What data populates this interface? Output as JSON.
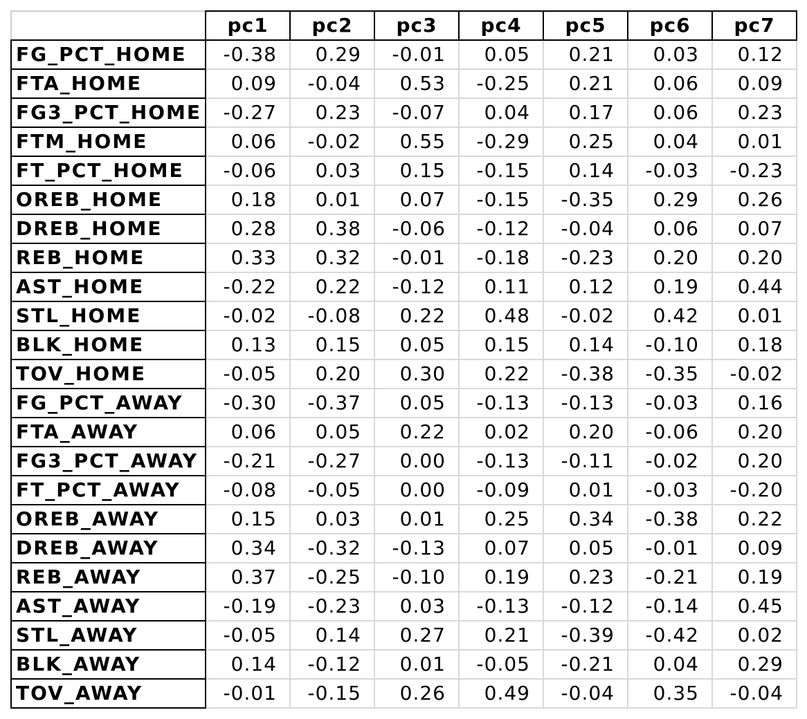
{
  "columns": [
    "pc1",
    "pc2",
    "pc3",
    "pc4",
    "pc5",
    "pc6",
    "pc7"
  ],
  "rows": [
    {
      "label": "FG_PCT_HOME",
      "values": [
        "-0.38",
        "0.29",
        "-0.01",
        "0.05",
        "0.21",
        "0.03",
        "0.12"
      ]
    },
    {
      "label": "FTA_HOME",
      "values": [
        "0.09",
        "-0.04",
        "0.53",
        "-0.25",
        "0.21",
        "0.06",
        "0.09"
      ]
    },
    {
      "label": "FG3_PCT_HOME",
      "values": [
        "-0.27",
        "0.23",
        "-0.07",
        "0.04",
        "0.17",
        "0.06",
        "0.23"
      ]
    },
    {
      "label": "FTM_HOME",
      "values": [
        "0.06",
        "-0.02",
        "0.55",
        "-0.29",
        "0.25",
        "0.04",
        "0.01"
      ]
    },
    {
      "label": "FT_PCT_HOME",
      "values": [
        "-0.06",
        "0.03",
        "0.15",
        "-0.15",
        "0.14",
        "-0.03",
        "-0.23"
      ]
    },
    {
      "label": "OREB_HOME",
      "values": [
        "0.18",
        "0.01",
        "0.07",
        "-0.15",
        "-0.35",
        "0.29",
        "0.26"
      ]
    },
    {
      "label": "DREB_HOME",
      "values": [
        "0.28",
        "0.38",
        "-0.06",
        "-0.12",
        "-0.04",
        "0.06",
        "0.07"
      ]
    },
    {
      "label": "REB_HOME",
      "values": [
        "0.33",
        "0.32",
        "-0.01",
        "-0.18",
        "-0.23",
        "0.20",
        "0.20"
      ]
    },
    {
      "label": "AST_HOME",
      "values": [
        "-0.22",
        "0.22",
        "-0.12",
        "0.11",
        "0.12",
        "0.19",
        "0.44"
      ]
    },
    {
      "label": "STL_HOME",
      "values": [
        "-0.02",
        "-0.08",
        "0.22",
        "0.48",
        "-0.02",
        "0.42",
        "0.01"
      ]
    },
    {
      "label": "BLK_HOME",
      "values": [
        "0.13",
        "0.15",
        "0.05",
        "0.15",
        "0.14",
        "-0.10",
        "0.18"
      ]
    },
    {
      "label": "TOV_HOME",
      "values": [
        "-0.05",
        "0.20",
        "0.30",
        "0.22",
        "-0.38",
        "-0.35",
        "-0.02"
      ]
    },
    {
      "label": "FG_PCT_AWAY",
      "values": [
        "-0.30",
        "-0.37",
        "0.05",
        "-0.13",
        "-0.13",
        "-0.03",
        "0.16"
      ]
    },
    {
      "label": "FTA_AWAY",
      "values": [
        "0.06",
        "0.05",
        "0.22",
        "0.02",
        "0.20",
        "-0.06",
        "0.20"
      ]
    },
    {
      "label": "FG3_PCT_AWAY",
      "values": [
        "-0.21",
        "-0.27",
        "0.00",
        "-0.13",
        "-0.11",
        "-0.02",
        "0.20"
      ]
    },
    {
      "label": "FT_PCT_AWAY",
      "values": [
        "-0.08",
        "-0.05",
        "0.00",
        "-0.09",
        "0.01",
        "-0.03",
        "-0.20"
      ]
    },
    {
      "label": "OREB_AWAY",
      "values": [
        "0.15",
        "0.03",
        "0.01",
        "0.25",
        "0.34",
        "-0.38",
        "0.22"
      ]
    },
    {
      "label": "DREB_AWAY",
      "values": [
        "0.34",
        "-0.32",
        "-0.13",
        "0.07",
        "0.05",
        "-0.01",
        "0.09"
      ]
    },
    {
      "label": "REB_AWAY",
      "values": [
        "0.37",
        "-0.25",
        "-0.10",
        "0.19",
        "0.23",
        "-0.21",
        "0.19"
      ]
    },
    {
      "label": "AST_AWAY",
      "values": [
        "-0.19",
        "-0.23",
        "0.03",
        "-0.13",
        "-0.12",
        "-0.14",
        "0.45"
      ]
    },
    {
      "label": "STL_AWAY",
      "values": [
        "-0.05",
        "0.14",
        "0.27",
        "0.21",
        "-0.39",
        "-0.42",
        "0.02"
      ]
    },
    {
      "label": "BLK_AWAY",
      "values": [
        "0.14",
        "-0.12",
        "0.01",
        "-0.05",
        "-0.21",
        "0.04",
        "0.29"
      ]
    },
    {
      "label": "TOV_AWAY",
      "values": [
        "-0.01",
        "-0.15",
        "0.26",
        "0.49",
        "-0.04",
        "0.35",
        "-0.04"
      ]
    }
  ]
}
